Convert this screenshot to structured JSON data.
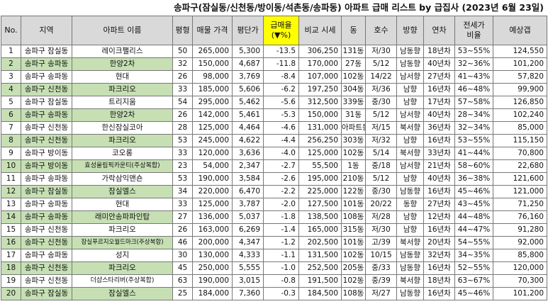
{
  "title": "송파구(잠실동/신천동/방이동/석촌동/송파동) 아파트 급매 리스트 by 급집사 (2023년 6월 23일)",
  "headers": [
    "No.",
    "지역",
    "아파트 이름",
    "평형",
    "매물 가격",
    "평단가",
    "급매율\n(▼%)",
    "비교 시세",
    "동",
    "호수",
    "방향",
    "연차",
    "전세가\n비율",
    "예상갭"
  ],
  "colors": {
    "header_bg": "#d9d9d9",
    "highlight_header": "#ffff00",
    "green_row": "#c6e0b4"
  },
  "rows": [
    [
      "1",
      "송파구 잠실동",
      "레이크팰리스",
      "50",
      "265,000",
      "5,300",
      "-13.5",
      "306,250",
      "131동",
      "저/30",
      "남동향",
      "18년차",
      "53~55%",
      "124,550"
    ],
    [
      "2",
      "송파구 송파동",
      "한양2차",
      "32",
      "150,000",
      "4,687",
      "-11.8",
      "170,000",
      "27동",
      "5/12",
      "남동향",
      "40년차",
      "32~36%",
      "101,200"
    ],
    [
      "3",
      "송파구 송파동",
      "현대",
      "26",
      "98,000",
      "3,769",
      "-8.4",
      "107,000",
      "102동",
      "14/22",
      "남서향",
      "27년차",
      "41~43%",
      "57,820"
    ],
    [
      "4",
      "송파구 신천동",
      "파크리오",
      "33",
      "185,000",
      "5,606",
      "-6.2",
      "197,250",
      "304동",
      "저/36",
      "남향",
      "16년차",
      "46~48%",
      "99,900"
    ],
    [
      "5",
      "송파구 잠실동",
      "트리지움",
      "54",
      "295,000",
      "5,462",
      "-5.6",
      "312,500",
      "339동",
      "중/30",
      "남향",
      "17년차",
      "57~58%",
      "126,850"
    ],
    [
      "6",
      "송파구 송파동",
      "한양2차",
      "26",
      "142,000",
      "5,461",
      "-5.3",
      "150,000",
      "31동",
      "5/12",
      "남서향",
      "40년차",
      "28~34%",
      "102,240"
    ],
    [
      "7",
      "송파구 신천동",
      "한신잠실코아",
      "28",
      "125,000",
      "4,464",
      "-4.6",
      "131,000",
      "아파트동",
      "저/15",
      "북서향",
      "36년차",
      "32~34%",
      "85,000"
    ],
    [
      "8",
      "송파구 신천동",
      "파크리오",
      "53",
      "245,000",
      "4,622",
      "-4.4",
      "256,250",
      "303동",
      "저/32",
      "남향",
      "16년차",
      "53~55%",
      "115,150"
    ],
    [
      "9",
      "송파구 방이동",
      "코오롱",
      "33",
      "120,000",
      "3,636",
      "-4.0",
      "125,000",
      "102동",
      "5/14",
      "북서향",
      "33년차",
      "41~44%",
      "70,800"
    ],
    [
      "10",
      "송파구 방이동",
      "효성올림픽카운티(주상복합)",
      "23",
      "54,000",
      "2,347",
      "-2.7",
      "55,500",
      "1동",
      "중/18",
      "남서향",
      "21년차",
      "58~60%",
      "22,680"
    ],
    [
      "11",
      "송파구 송파동",
      "가락삼익맨숀",
      "53",
      "190,000",
      "3,584",
      "-2.6",
      "195,000",
      "210동",
      "5/12",
      "남향",
      "40년차",
      "36~38%",
      "121,600"
    ],
    [
      "12",
      "송파구 잠실동",
      "잠실엘스",
      "34",
      "220,000",
      "6,470",
      "-2.2",
      "225,000",
      "122동",
      "중/30",
      "남동향",
      "16년차",
      "45~46%",
      "121,000"
    ],
    [
      "13",
      "송파구 송파동",
      "현대",
      "33",
      "125,000",
      "3,787",
      "-2.0",
      "127,500",
      "101동",
      "20/22",
      "동향",
      "27년차",
      "43~45%",
      "71,250"
    ],
    [
      "14",
      "송파구 송파동",
      "래미안송파파인탑",
      "27",
      "136,000",
      "5,037",
      "-1.8",
      "138,500",
      "108동",
      "저/28",
      "남향",
      "12년차",
      "44~48%",
      "76,160"
    ],
    [
      "15",
      "송파구 신천동",
      "파크리오",
      "26",
      "163,000",
      "6,269",
      "-1.4",
      "165,000",
      "315동",
      "저/30",
      "남향",
      "16년차",
      "44~47%",
      "91,280"
    ],
    [
      "16",
      "송파구 신천동",
      "잠실푸르지오월드마크(주상복합)",
      "46",
      "200,000",
      "4,347",
      "-1.2",
      "202,500",
      "101동",
      "고/39",
      "북서향",
      "20년차",
      "54~55%",
      "92,000"
    ],
    [
      "17",
      "송파구 송파동",
      "성지",
      "30",
      "130,000",
      "4,333",
      "-1.1",
      "131,500",
      "102동",
      "10/15",
      "남동향",
      "32년차",
      "34~35%",
      "85,800"
    ],
    [
      "18",
      "송파구 신천동",
      "파크리오",
      "45",
      "250,000",
      "5,555",
      "-1.0",
      "252,500",
      "205동",
      "중/33",
      "남동향",
      "16년차",
      "52~55%",
      "120,000"
    ],
    [
      "19",
      "송파구 신천동",
      "더샵스타리버(주상복합)",
      "63",
      "190,000",
      "3,015",
      "-0.8",
      "191,500",
      "102동",
      "중/39",
      "북서향",
      "18년차",
      "63~67%",
      "70,300"
    ],
    [
      "20",
      "송파구 잠실동",
      "잠실엘스",
      "25",
      "184,000",
      "7,360",
      "-0.3",
      "184,500",
      "108동",
      "저/27",
      "남동향",
      "16년차",
      "45~46%",
      "101,200"
    ]
  ],
  "green_rows": [
    1,
    3,
    5,
    7,
    9,
    11,
    13,
    15,
    17,
    19
  ]
}
